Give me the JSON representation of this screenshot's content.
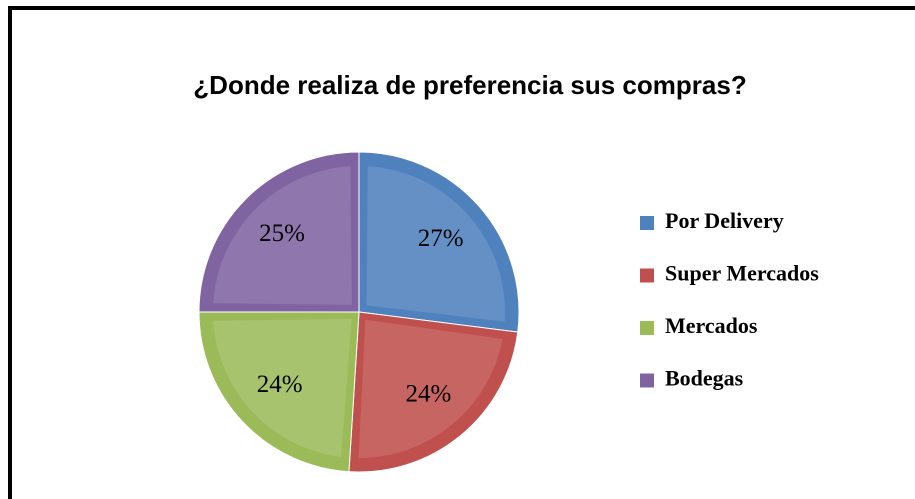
{
  "chart_data": {
    "type": "pie",
    "title": "¿Donde realiza de preferencia sus compras?",
    "categories": [
      "Por Delivery",
      "Super Mercados",
      "Mercados",
      "Bodegas"
    ],
    "values": [
      27,
      24,
      24,
      25
    ],
    "value_labels": [
      "27%",
      "24%",
      "24%",
      "25%"
    ],
    "colors": [
      "#4f81bd",
      "#c0504d",
      "#9bbb59",
      "#8064a2"
    ],
    "legend": "right"
  }
}
